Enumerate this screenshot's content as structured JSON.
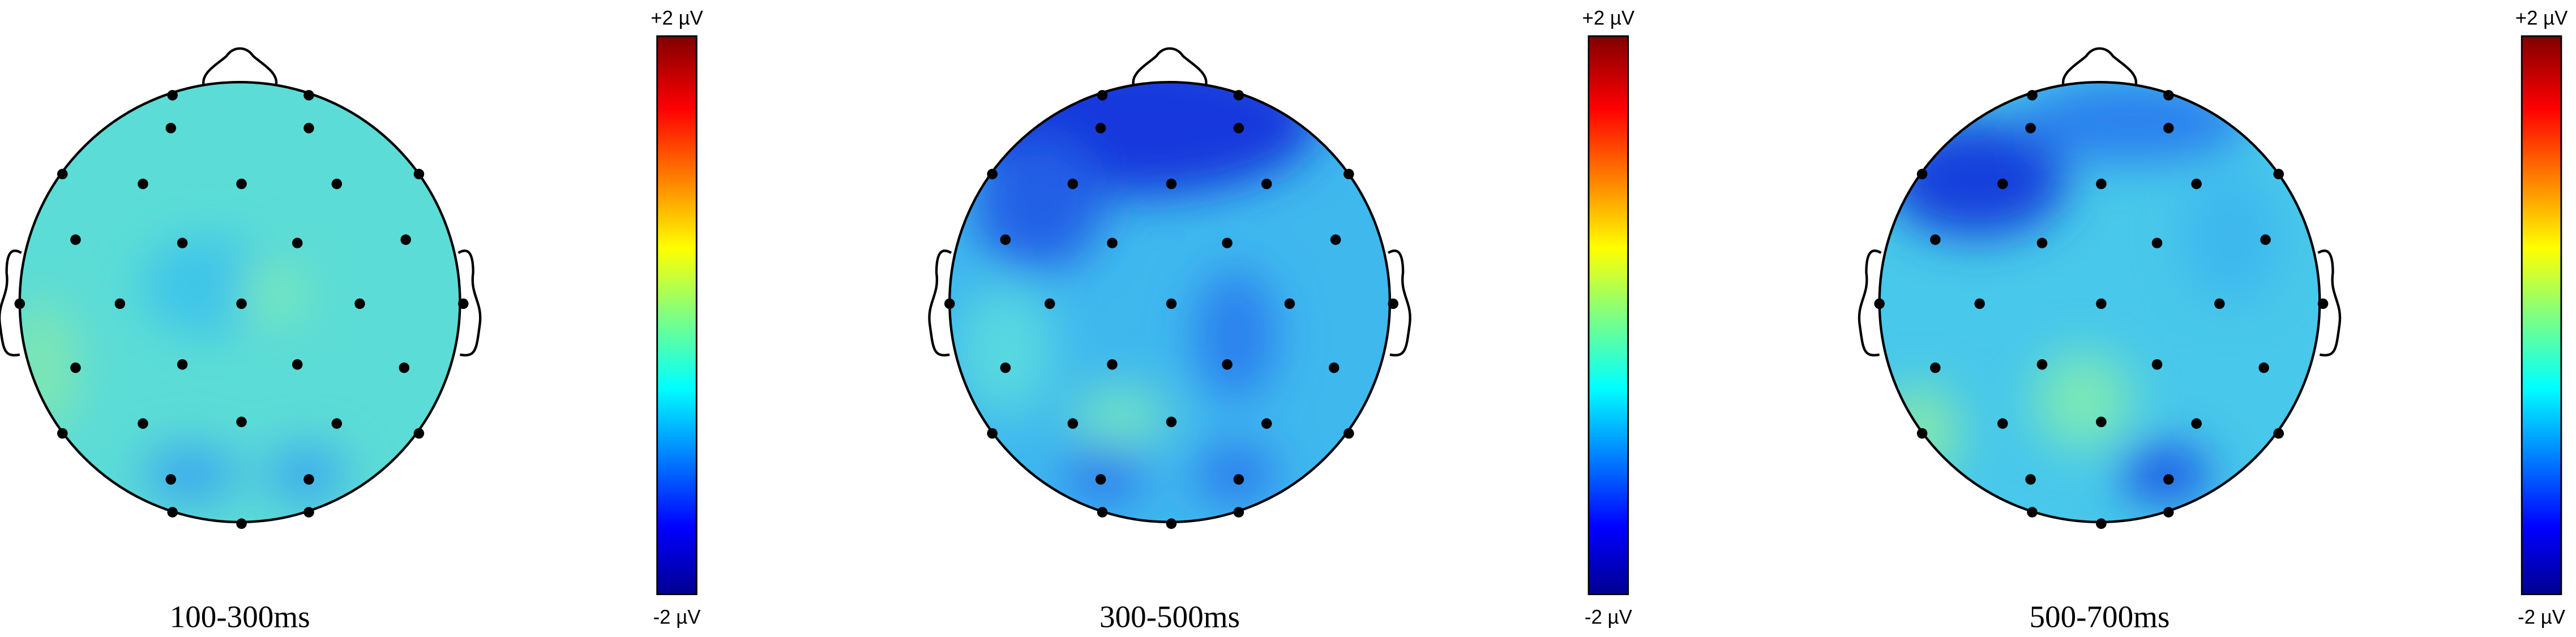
{
  "panels": [
    {
      "label": "100-300ms",
      "colorbar": {
        "max": "+2 µV",
        "min": "-2 µV"
      }
    },
    {
      "label": "300-500ms",
      "colorbar": {
        "max": "+2 µV",
        "min": "-2 µV"
      }
    },
    {
      "label": "500-700ms",
      "colorbar": {
        "max": "+2 µV",
        "min": "-2 µV"
      }
    }
  ]
}
